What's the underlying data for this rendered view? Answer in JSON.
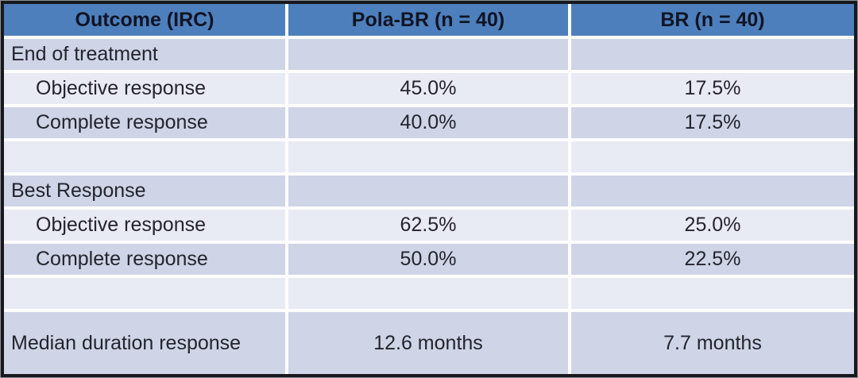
{
  "chart_data": {
    "type": "table",
    "columns": [
      "Outcome (IRC)",
      "Pola-BR (n = 40)",
      "BR (n = 40)"
    ],
    "rows": [
      [
        "End of treatment",
        "",
        ""
      ],
      [
        "Objective response",
        "45.0%",
        "17.5%"
      ],
      [
        "Complete response",
        "40.0%",
        "17.5%"
      ],
      [
        "",
        "",
        ""
      ],
      [
        "Best Response",
        "",
        ""
      ],
      [
        "Objective response",
        "62.5%",
        "25.0%"
      ],
      [
        "Complete response",
        "50.0%",
        "22.5%"
      ],
      [
        "",
        "",
        ""
      ],
      [
        "Median duration response",
        "12.6 months",
        "7.7 months"
      ]
    ]
  },
  "colors": {
    "header_bg": "#4d7fbc",
    "row_band_medium": "#cfd4e6",
    "row_band_light": "#e9ebf4",
    "gridline": "#fdfdfe",
    "outer_border": "#18181c",
    "header_text": "#101423",
    "body_text": "#23242e"
  }
}
